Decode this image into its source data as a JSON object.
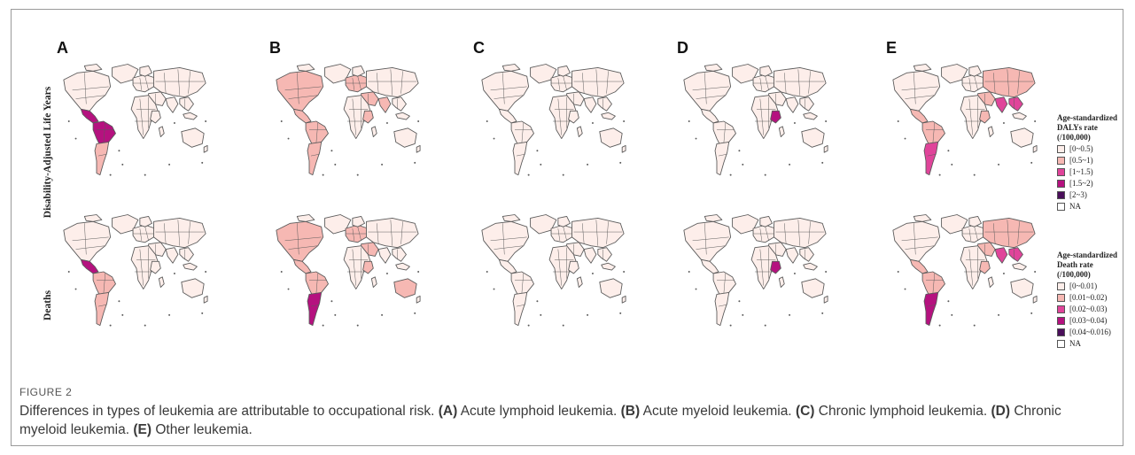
{
  "panels": [
    "A",
    "B",
    "C",
    "D",
    "E"
  ],
  "row_labels": [
    "Disability-Adjusted Life Years",
    "Deaths"
  ],
  "colors": {
    "base": "#fdeeea",
    "light": "#f6b8b3",
    "mid": "#e0449a",
    "dark": "#b5117f",
    "darker": "#8e0f78",
    "darkest": "#4a0f5a",
    "na": "#ffffff",
    "border": "#5a5a5a"
  },
  "legends": [
    {
      "title": "Age-standardized DALYs rate (/100,000)",
      "items": [
        {
          "label": "[0~0.5)",
          "color": "#fdeeea"
        },
        {
          "label": "[0.5~1)",
          "color": "#f6b8b3"
        },
        {
          "label": "[1~1.5)",
          "color": "#e0449a"
        },
        {
          "label": "[1.5~2)",
          "color": "#b5117f"
        },
        {
          "label": "[2~3)",
          "color": "#4a0f5a"
        },
        {
          "label": "NA",
          "color": "#ffffff"
        }
      ]
    },
    {
      "title": "Age-standardized Death rate (/100,000)",
      "items": [
        {
          "label": "[0~0.01)",
          "color": "#fdeeea"
        },
        {
          "label": "[0.01~0.02)",
          "color": "#f6b8b3"
        },
        {
          "label": "[0.02~0.03)",
          "color": "#e0449a"
        },
        {
          "label": "[0.03~0.04)",
          "color": "#b5117f"
        },
        {
          "label": "[0.04~0.016)",
          "color": "#4a0f5a"
        },
        {
          "label": "NA",
          "color": "#ffffff"
        }
      ]
    }
  ],
  "maps": [
    [
      {
        "north_america": "base",
        "central_america": "dark",
        "south_america_north": "dark",
        "south_america_south": "light",
        "europe": "base",
        "africa": "base",
        "east_africa": "base",
        "asia": "base",
        "middle_east": "base",
        "india": "base",
        "se_asia": "base",
        "australia": "base"
      },
      {
        "north_america": "light",
        "central_america": "light",
        "south_america_north": "light",
        "south_america_south": "light",
        "europe": "light",
        "africa": "base",
        "east_africa": "light",
        "asia": "base",
        "middle_east": "light",
        "india": "light",
        "se_asia": "base",
        "australia": "base"
      },
      {
        "north_america": "base",
        "central_america": "base",
        "south_america_north": "base",
        "south_america_south": "base",
        "europe": "base",
        "africa": "base",
        "east_africa": "base",
        "asia": "base",
        "middle_east": "base",
        "india": "base",
        "se_asia": "base",
        "australia": "base"
      },
      {
        "north_america": "base",
        "central_america": "base",
        "south_america_north": "base",
        "south_america_south": "base",
        "europe": "base",
        "africa": "base",
        "east_africa": "dark",
        "asia": "base",
        "middle_east": "base",
        "india": "base",
        "se_asia": "base",
        "australia": "base"
      },
      {
        "north_america": "base",
        "central_america": "light",
        "south_america_north": "light",
        "south_america_south": "mid",
        "europe": "base",
        "africa": "base",
        "east_africa": "light",
        "asia": "light",
        "middle_east": "light",
        "india": "mid",
        "se_asia": "mid",
        "australia": "base"
      }
    ],
    [
      {
        "north_america": "base",
        "central_america": "dark",
        "south_america_north": "light",
        "south_america_south": "light",
        "europe": "base",
        "africa": "base",
        "east_africa": "base",
        "asia": "base",
        "middle_east": "base",
        "india": "base",
        "se_asia": "base",
        "australia": "base"
      },
      {
        "north_america": "light",
        "central_america": "light",
        "south_america_north": "light",
        "south_america_south": "dark",
        "europe": "light",
        "africa": "base",
        "east_africa": "light",
        "asia": "base",
        "middle_east": "light",
        "india": "base",
        "se_asia": "base",
        "australia": "light"
      },
      {
        "north_america": "base",
        "central_america": "base",
        "south_america_north": "base",
        "south_america_south": "base",
        "europe": "base",
        "africa": "base",
        "east_africa": "base",
        "asia": "base",
        "middle_east": "base",
        "india": "base",
        "se_asia": "base",
        "australia": "base"
      },
      {
        "north_america": "base",
        "central_america": "base",
        "south_america_north": "base",
        "south_america_south": "base",
        "europe": "base",
        "africa": "base",
        "east_africa": "dark",
        "asia": "base",
        "middle_east": "base",
        "india": "base",
        "se_asia": "base",
        "australia": "base"
      },
      {
        "north_america": "base",
        "central_america": "light",
        "south_america_north": "light",
        "south_america_south": "dark",
        "europe": "base",
        "africa": "base",
        "east_africa": "light",
        "asia": "light",
        "middle_east": "light",
        "india": "mid",
        "se_asia": "mid",
        "australia": "base"
      }
    ]
  ],
  "caption": {
    "heading": "FIGURE 2",
    "intro": "Differences in types of leukemia are attributable to occupational risk.",
    "items": [
      {
        "tag": "(A)",
        "text": "Acute lymphoid leukemia."
      },
      {
        "tag": "(B)",
        "text": "Acute myeloid leukemia."
      },
      {
        "tag": "(C)",
        "text": "Chronic lymphoid leukemia."
      },
      {
        "tag": "(D)",
        "text": "Chronic myeloid leukemia."
      },
      {
        "tag": "(E)",
        "text": "Other leukemia."
      }
    ]
  }
}
